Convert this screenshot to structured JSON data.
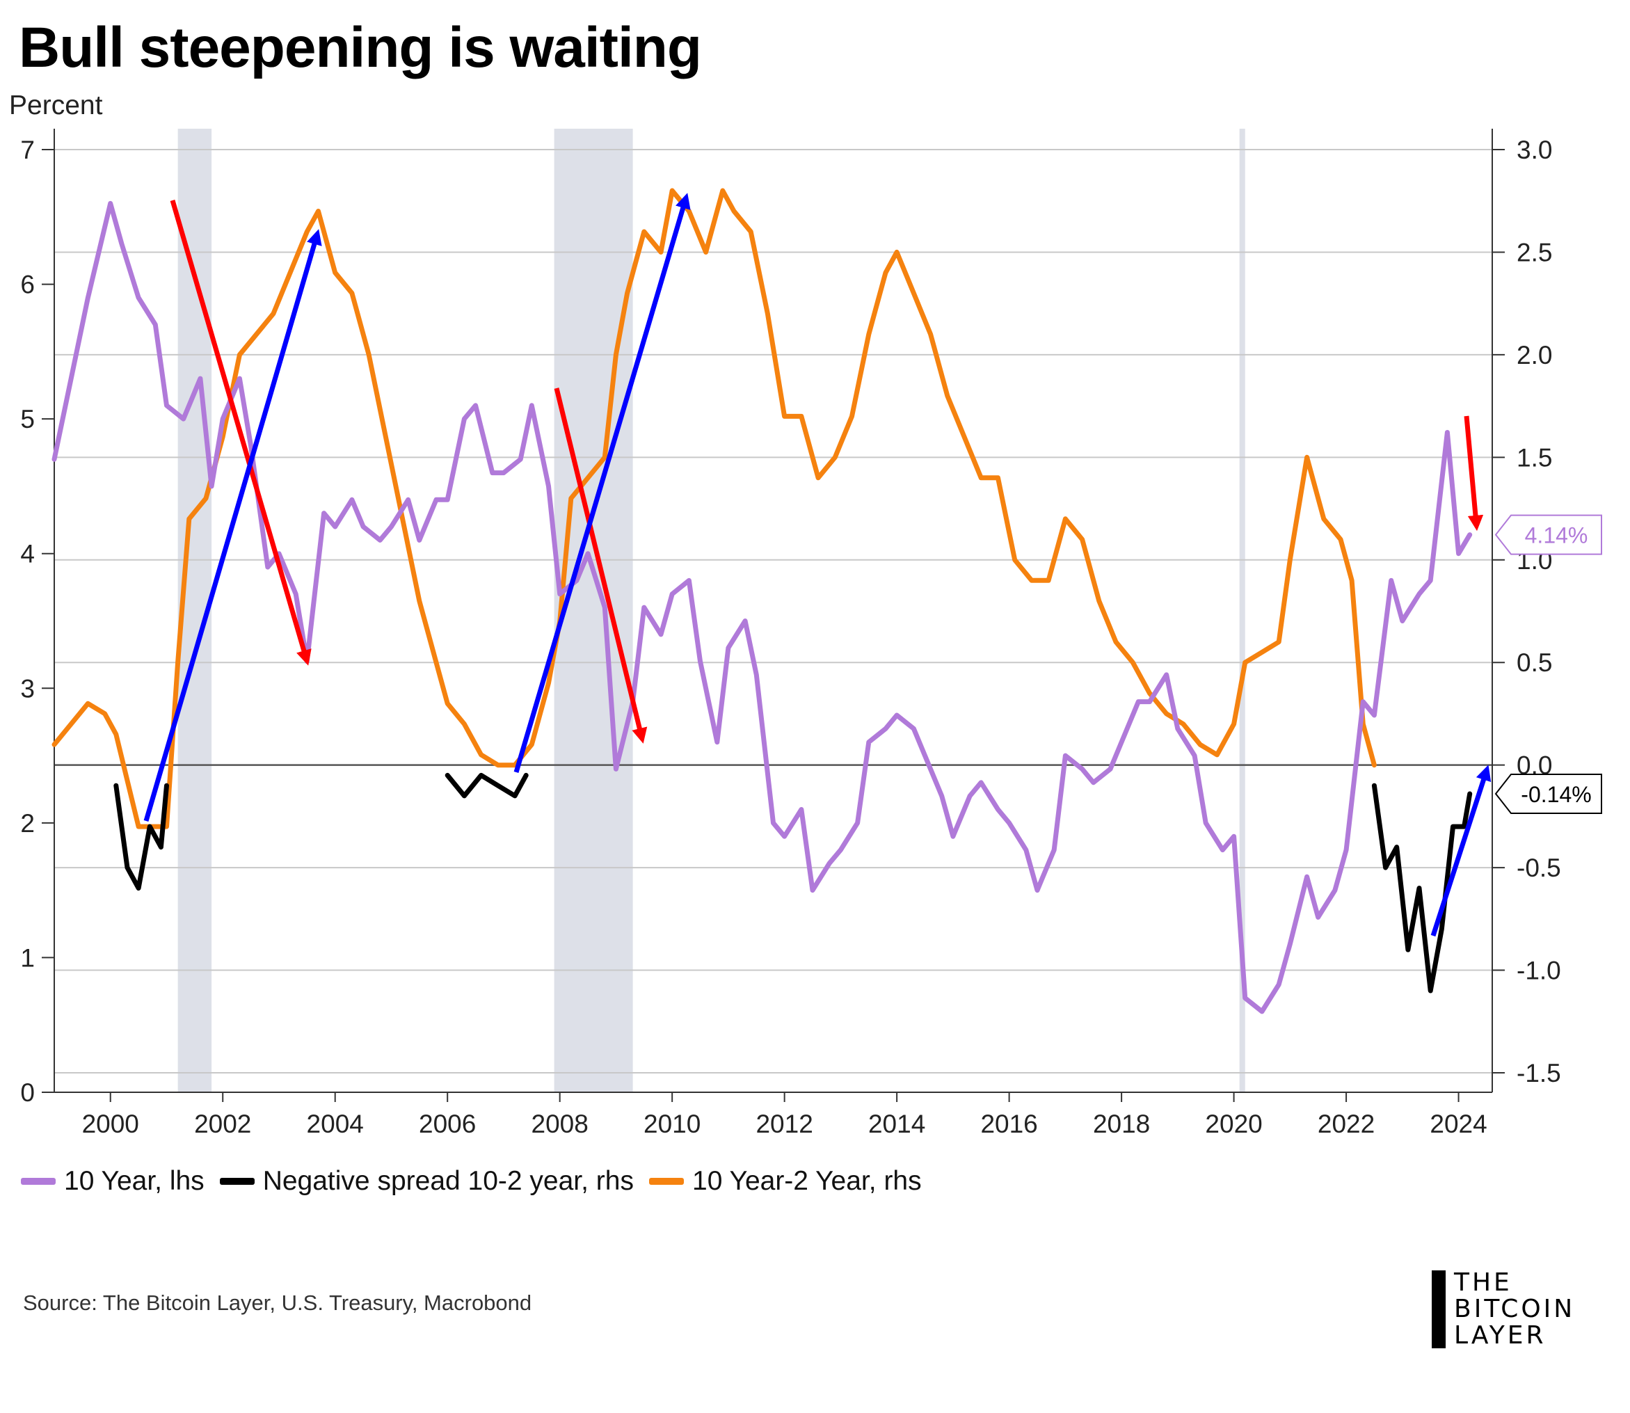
{
  "title": "Bull steepening is waiting",
  "unit_label": "Percent",
  "source": "Source: The Bitcoin Layer, U.S. Treasury, Macrobond",
  "logo": {
    "line1": "THE",
    "line2": "BITCOIN",
    "line3": "LAYER"
  },
  "legend": [
    {
      "label": "10 Year, lhs",
      "color": "#b07ad9"
    },
    {
      "label": "Negative spread 10-2 year, rhs",
      "color": "#000000"
    },
    {
      "label": "10 Year-2 Year, rhs",
      "color": "#f5820f"
    }
  ],
  "colors": {
    "ten_year": "#b07ad9",
    "negative_spread": "#000000",
    "spread": "#f5820f",
    "recession": "#dde0e8",
    "flattening_arrow": "#ff0000",
    "steepening_arrow": "#0000ff",
    "grid": "#c8c8c8",
    "zero_line": "#555555"
  },
  "callouts": {
    "ten_year_last": "4.14%",
    "spread_last": "-0.14%"
  },
  "chart_data": {
    "type": "line",
    "title": "Bull steepening is waiting",
    "x_axis": {
      "range": [
        1999.0,
        2024.6
      ],
      "ticks": [
        "2000",
        "2002",
        "2004",
        "2006",
        "2008",
        "2010",
        "2012",
        "2014",
        "2016",
        "2018",
        "2020",
        "2022",
        "2024"
      ]
    },
    "y_left": {
      "label": "Percent",
      "range": [
        0,
        7
      ],
      "ticks": [
        "0",
        "1",
        "2",
        "3",
        "4",
        "5",
        "6",
        "7"
      ]
    },
    "y_right": {
      "range": [
        -1.5,
        3.0
      ],
      "ticks": [
        "-1.5",
        "-1.0",
        "-0.5",
        "0.0",
        "0.5",
        "1.0",
        "1.5",
        "2.0",
        "2.5",
        "3.0"
      ]
    },
    "grid": "horizontal",
    "legend_position": "bottom",
    "recession_shading": [
      [
        2001.2,
        2001.8
      ],
      [
        2007.9,
        2009.3
      ],
      [
        2020.1,
        2020.2
      ]
    ],
    "series": [
      {
        "name": "10 Year, lhs",
        "axis": "left",
        "x": [
          1999.0,
          1999.3,
          1999.6,
          2000.0,
          2000.2,
          2000.5,
          2000.8,
          2001.0,
          2001.3,
          2001.6,
          2001.8,
          2002.0,
          2002.3,
          2002.5,
          2002.8,
          2003.0,
          2003.3,
          2003.5,
          2003.8,
          2004.0,
          2004.3,
          2004.5,
          2004.8,
          2005.0,
          2005.3,
          2005.5,
          2005.8,
          2006.0,
          2006.3,
          2006.5,
          2006.8,
          2007.0,
          2007.3,
          2007.5,
          2007.8,
          2008.0,
          2008.3,
          2008.5,
          2008.8,
          2009.0,
          2009.3,
          2009.5,
          2009.8,
          2010.0,
          2010.3,
          2010.5,
          2010.8,
          2011.0,
          2011.3,
          2011.5,
          2011.8,
          2012.0,
          2012.3,
          2012.5,
          2012.8,
          2013.0,
          2013.3,
          2013.5,
          2013.8,
          2014.0,
          2014.3,
          2014.5,
          2014.8,
          2015.0,
          2015.3,
          2015.5,
          2015.8,
          2016.0,
          2016.3,
          2016.5,
          2016.8,
          2017.0,
          2017.3,
          2017.5,
          2017.8,
          2018.0,
          2018.3,
          2018.5,
          2018.8,
          2019.0,
          2019.3,
          2019.5,
          2019.8,
          2020.0,
          2020.2,
          2020.5,
          2020.8,
          2021.0,
          2021.3,
          2021.5,
          2021.8,
          2022.0,
          2022.3,
          2022.5,
          2022.8,
          2023.0,
          2023.3,
          2023.5,
          2023.8,
          2024.0,
          2024.2
        ],
        "y": [
          4.7,
          5.3,
          5.9,
          6.6,
          6.3,
          5.9,
          5.7,
          5.1,
          5.0,
          5.3,
          4.5,
          5.0,
          5.3,
          4.8,
          3.9,
          4.0,
          3.7,
          3.2,
          4.3,
          4.2,
          4.4,
          4.2,
          4.1,
          4.2,
          4.4,
          4.1,
          4.4,
          4.4,
          5.0,
          5.1,
          4.6,
          4.6,
          4.7,
          5.1,
          4.5,
          3.7,
          3.8,
          4.0,
          3.6,
          2.4,
          2.9,
          3.6,
          3.4,
          3.7,
          3.8,
          3.2,
          2.6,
          3.3,
          3.5,
          3.1,
          2.0,
          1.9,
          2.1,
          1.5,
          1.7,
          1.8,
          2.0,
          2.6,
          2.7,
          2.8,
          2.7,
          2.5,
          2.2,
          1.9,
          2.2,
          2.3,
          2.1,
          2.0,
          1.8,
          1.5,
          1.8,
          2.5,
          2.4,
          2.3,
          2.4,
          2.6,
          2.9,
          2.9,
          3.1,
          2.7,
          2.5,
          2.0,
          1.8,
          1.9,
          0.7,
          0.6,
          0.8,
          1.1,
          1.6,
          1.3,
          1.5,
          1.8,
          2.9,
          2.8,
          3.8,
          3.5,
          3.7,
          3.8,
          4.9,
          4.0,
          4.14
        ]
      },
      {
        "name": "10 Year-2 Year, rhs",
        "axis": "right",
        "x": [
          1999.0,
          1999.3,
          1999.6,
          1999.9,
          2000.1,
          2000.5,
          2001.0,
          2001.2,
          2001.4,
          2001.7,
          2002.0,
          2002.3,
          2002.6,
          2002.9,
          2003.2,
          2003.5,
          2003.7,
          2004.0,
          2004.3,
          2004.6,
          2004.9,
          2005.2,
          2005.5,
          2005.8,
          2006.0,
          2006.3,
          2006.6,
          2006.9,
          2007.2,
          2007.5,
          2007.8,
          2008.0,
          2008.2,
          2008.5,
          2008.8,
          2009.0,
          2009.2,
          2009.5,
          2009.8,
          2010.0,
          2010.3,
          2010.6,
          2010.9,
          2011.1,
          2011.4,
          2011.7,
          2012.0,
          2012.3,
          2012.6,
          2012.9,
          2013.2,
          2013.5,
          2013.8,
          2014.0,
          2014.3,
          2014.6,
          2014.9,
          2015.2,
          2015.5,
          2015.8,
          2016.1,
          2016.4,
          2016.7,
          2017.0,
          2017.3,
          2017.6,
          2017.9,
          2018.2,
          2018.5,
          2018.8,
          2019.1,
          2019.4,
          2019.7,
          2020.0,
          2020.2,
          2020.5,
          2020.8,
          2021.0,
          2021.3,
          2021.6,
          2021.9,
          2022.1,
          2022.3,
          2022.5
        ],
        "y": [
          0.1,
          0.2,
          0.3,
          0.25,
          0.15,
          -0.3,
          -0.3,
          0.5,
          1.2,
          1.3,
          1.6,
          2.0,
          2.1,
          2.2,
          2.4,
          2.6,
          2.7,
          2.4,
          2.3,
          2.0,
          1.6,
          1.2,
          0.8,
          0.5,
          0.3,
          0.2,
          0.05,
          0.0,
          0.0,
          0.1,
          0.4,
          0.7,
          1.3,
          1.4,
          1.5,
          2.0,
          2.3,
          2.6,
          2.5,
          2.8,
          2.7,
          2.5,
          2.8,
          2.7,
          2.6,
          2.2,
          1.7,
          1.7,
          1.4,
          1.5,
          1.7,
          2.1,
          2.4,
          2.5,
          2.3,
          2.1,
          1.8,
          1.6,
          1.4,
          1.4,
          1.0,
          0.9,
          0.9,
          1.2,
          1.1,
          0.8,
          0.6,
          0.5,
          0.35,
          0.25,
          0.2,
          0.1,
          0.05,
          0.2,
          0.5,
          0.55,
          0.6,
          1.0,
          1.5,
          1.2,
          1.1,
          0.9,
          0.2,
          0.0
        ]
      },
      {
        "name": "Negative spread 10-2 year, rhs",
        "axis": "right",
        "segments": [
          {
            "x": [
              2000.1,
              2000.3,
              2000.5,
              2000.7,
              2000.9,
              2001.0
            ],
            "y": [
              -0.1,
              -0.5,
              -0.6,
              -0.3,
              -0.4,
              -0.1
            ]
          },
          {
            "x": [
              2006.0,
              2006.3,
              2006.6,
              2006.9,
              2007.2,
              2007.4
            ],
            "y": [
              -0.05,
              -0.15,
              -0.05,
              -0.1,
              -0.15,
              -0.05
            ]
          },
          {
            "x": [
              2022.5,
              2022.7,
              2022.9,
              2023.1,
              2023.3,
              2023.5,
              2023.7,
              2023.9,
              2024.1,
              2024.2
            ],
            "y": [
              -0.1,
              -0.5,
              -0.4,
              -0.9,
              -0.6,
              -1.1,
              -0.8,
              -0.3,
              -0.3,
              -0.14
            ]
          }
        ]
      }
    ]
  }
}
